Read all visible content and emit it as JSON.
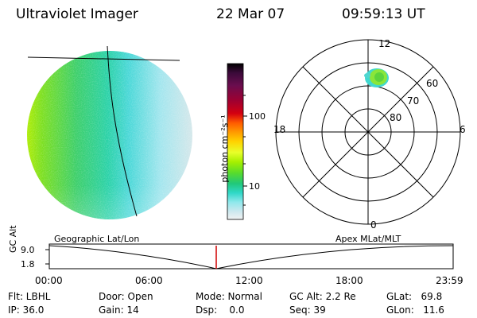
{
  "header": {
    "instrument": "Ultraviolet Imager",
    "date": "22 Mar 07",
    "time": "09:59:13 UT"
  },
  "colorbar": {
    "unit_label": "photon cm⁻²s⁻¹",
    "tick_labels": [
      "100",
      "10"
    ],
    "colors": [
      "#000000",
      "#3b0a3a",
      "#6a0d4e",
      "#a00030",
      "#d40010",
      "#ff5a00",
      "#ff9a00",
      "#ffd200",
      "#e8ff2a",
      "#a8f000",
      "#5adc2a",
      "#20c87a",
      "#30d8c8",
      "#90e8ec",
      "#cde8ee",
      "#f2f2f2"
    ]
  },
  "polar_plot": {
    "mlt_labels": {
      "top": "12",
      "bottom": "0",
      "left": "18",
      "right": "6"
    },
    "lat_labels": [
      "60",
      "70",
      "80"
    ]
  },
  "timeline": {
    "y_axis_title": "GC Alt",
    "y_ticks": [
      "9.0",
      "1.8"
    ],
    "left_caption": "Geographic Lat/Lon",
    "right_caption": "Apex MLat/MLT",
    "x_ticks": [
      "00:00",
      "06:00",
      "12:00",
      "18:00",
      "23:59"
    ],
    "marker_color": "#d00000"
  },
  "status": {
    "flt": "Flt: LBHL",
    "ip": "IP: 36.0",
    "door": "Door: Open",
    "gain": "Gain: 14",
    "mode": "Mode: Normal",
    "dsp": "Dsp:    0.0",
    "gcalt": "GC Alt: 2.2 Re",
    "seq": "Seq: 39",
    "glat": "GLat:   69.8",
    "glon": "GLon:   11.6"
  }
}
